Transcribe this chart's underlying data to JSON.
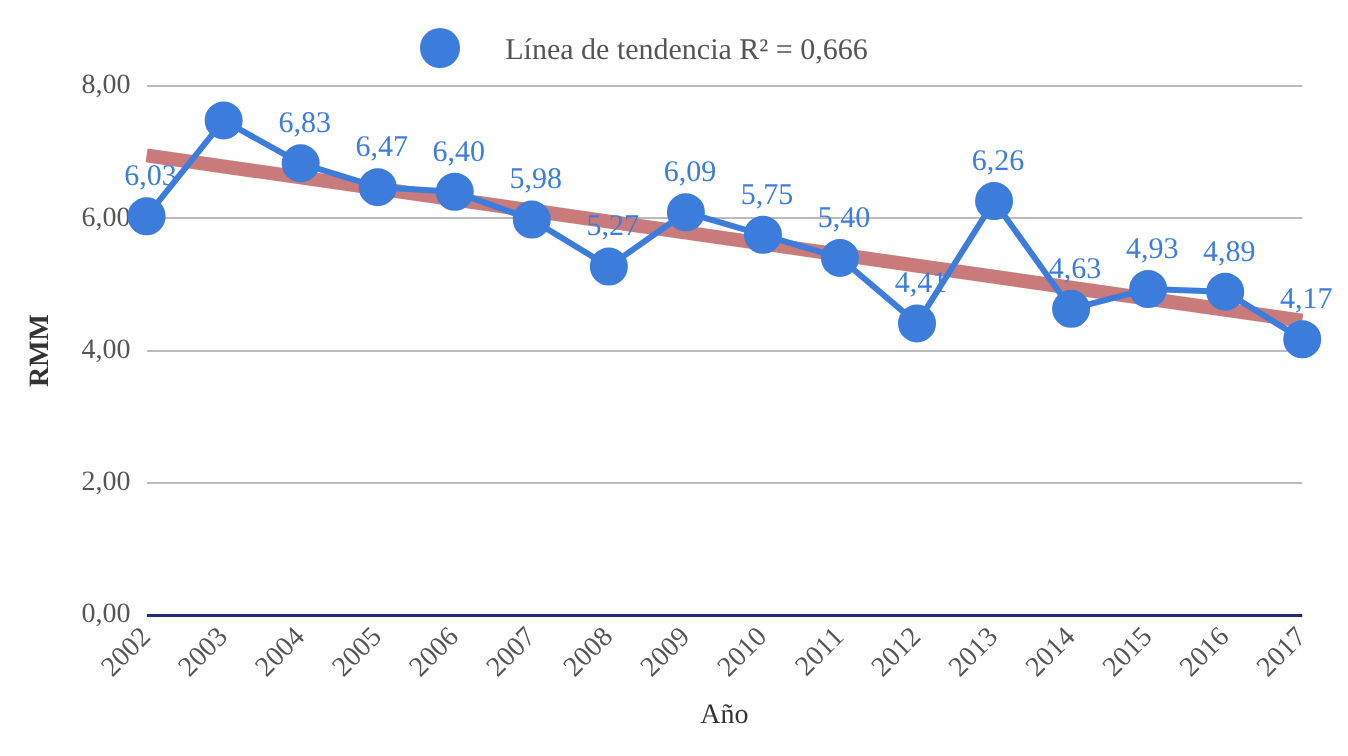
{
  "chart_data": {
    "type": "line",
    "xlabel": "Año",
    "ylabel": "RMM",
    "categories": [
      "2002",
      "2003",
      "2004",
      "2005",
      "2006",
      "2007",
      "2008",
      "2009",
      "2010",
      "2011",
      "2012",
      "2013",
      "2014",
      "2015",
      "2016",
      "2017"
    ],
    "series": [
      {
        "color": "#3c7ddc",
        "values": [
          6.03,
          7.48,
          6.83,
          6.47,
          6.4,
          5.98,
          5.27,
          6.09,
          5.75,
          5.4,
          4.41,
          6.26,
          4.63,
          4.93,
          4.89,
          4.17
        ],
        "marker": "circle",
        "value_labels": [
          "6,03",
          null,
          "6,83",
          "6,47",
          "6,40",
          "5,98",
          "5,27",
          "6,09",
          "5,75",
          "5,40",
          "4,41",
          "6,26",
          "4,63",
          "4,93",
          "4,89",
          "4,17"
        ]
      },
      {
        "name": "Línea de tendencia R² = 0,666",
        "color": "#c97b7b",
        "values": [
          6.95,
          null,
          null,
          null,
          null,
          null,
          null,
          null,
          null,
          null,
          null,
          null,
          null,
          null,
          null,
          4.45
        ],
        "marker": "none"
      }
    ],
    "ylim": [
      0,
      8
    ],
    "yticks": [
      {
        "value": 0,
        "label": "0,00"
      },
      {
        "value": 2,
        "label": "2,00"
      },
      {
        "value": 4,
        "label": "4,00"
      },
      {
        "value": 6,
        "label": "6,00"
      },
      {
        "value": 8,
        "label": "8,00"
      }
    ],
    "grid": "y",
    "legend": "top"
  }
}
